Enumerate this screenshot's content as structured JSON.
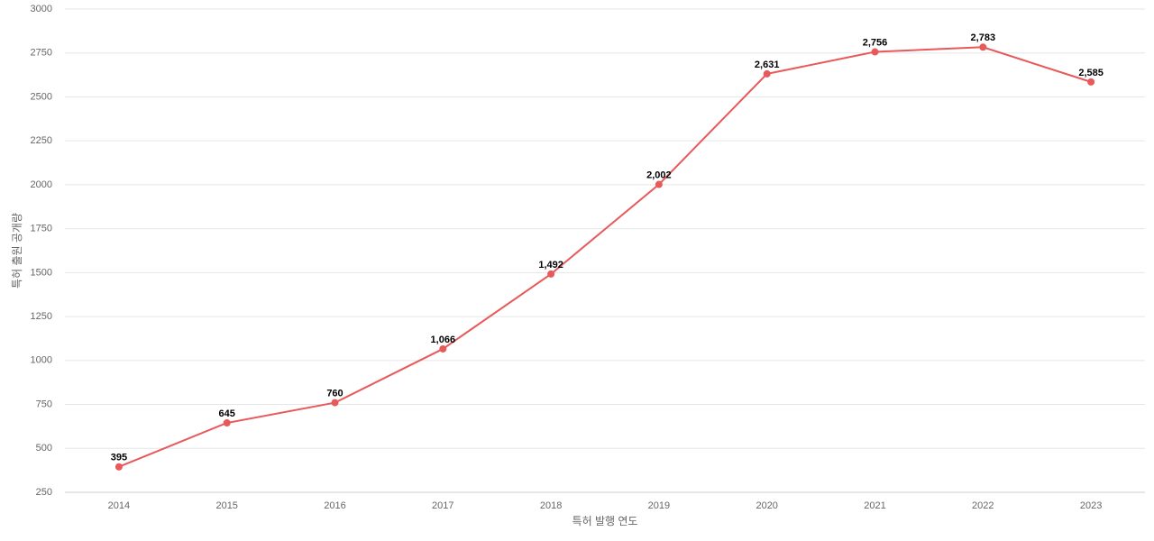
{
  "chart_data": {
    "type": "line",
    "x_label": "특허 발행 연도",
    "y_label": "특허 출원 공개량",
    "categories": [
      "2014",
      "2015",
      "2016",
      "2017",
      "2018",
      "2019",
      "2020",
      "2021",
      "2022",
      "2023"
    ],
    "series": [
      {
        "color": "#e8595a",
        "values": [
          395,
          645,
          760,
          1066,
          1492,
          2002,
          2631,
          2756,
          2783,
          2585
        ],
        "value_labels": [
          "395",
          "645",
          "760",
          "1,066",
          "1,492",
          "2,002",
          "2,631",
          "2,756",
          "2,783",
          "2,585"
        ]
      }
    ],
    "ylim": [
      250,
      3000
    ],
    "yticks": [
      250,
      500,
      750,
      1000,
      1250,
      1500,
      1750,
      2000,
      2250,
      2500,
      2750,
      3000
    ],
    "grid": true
  }
}
